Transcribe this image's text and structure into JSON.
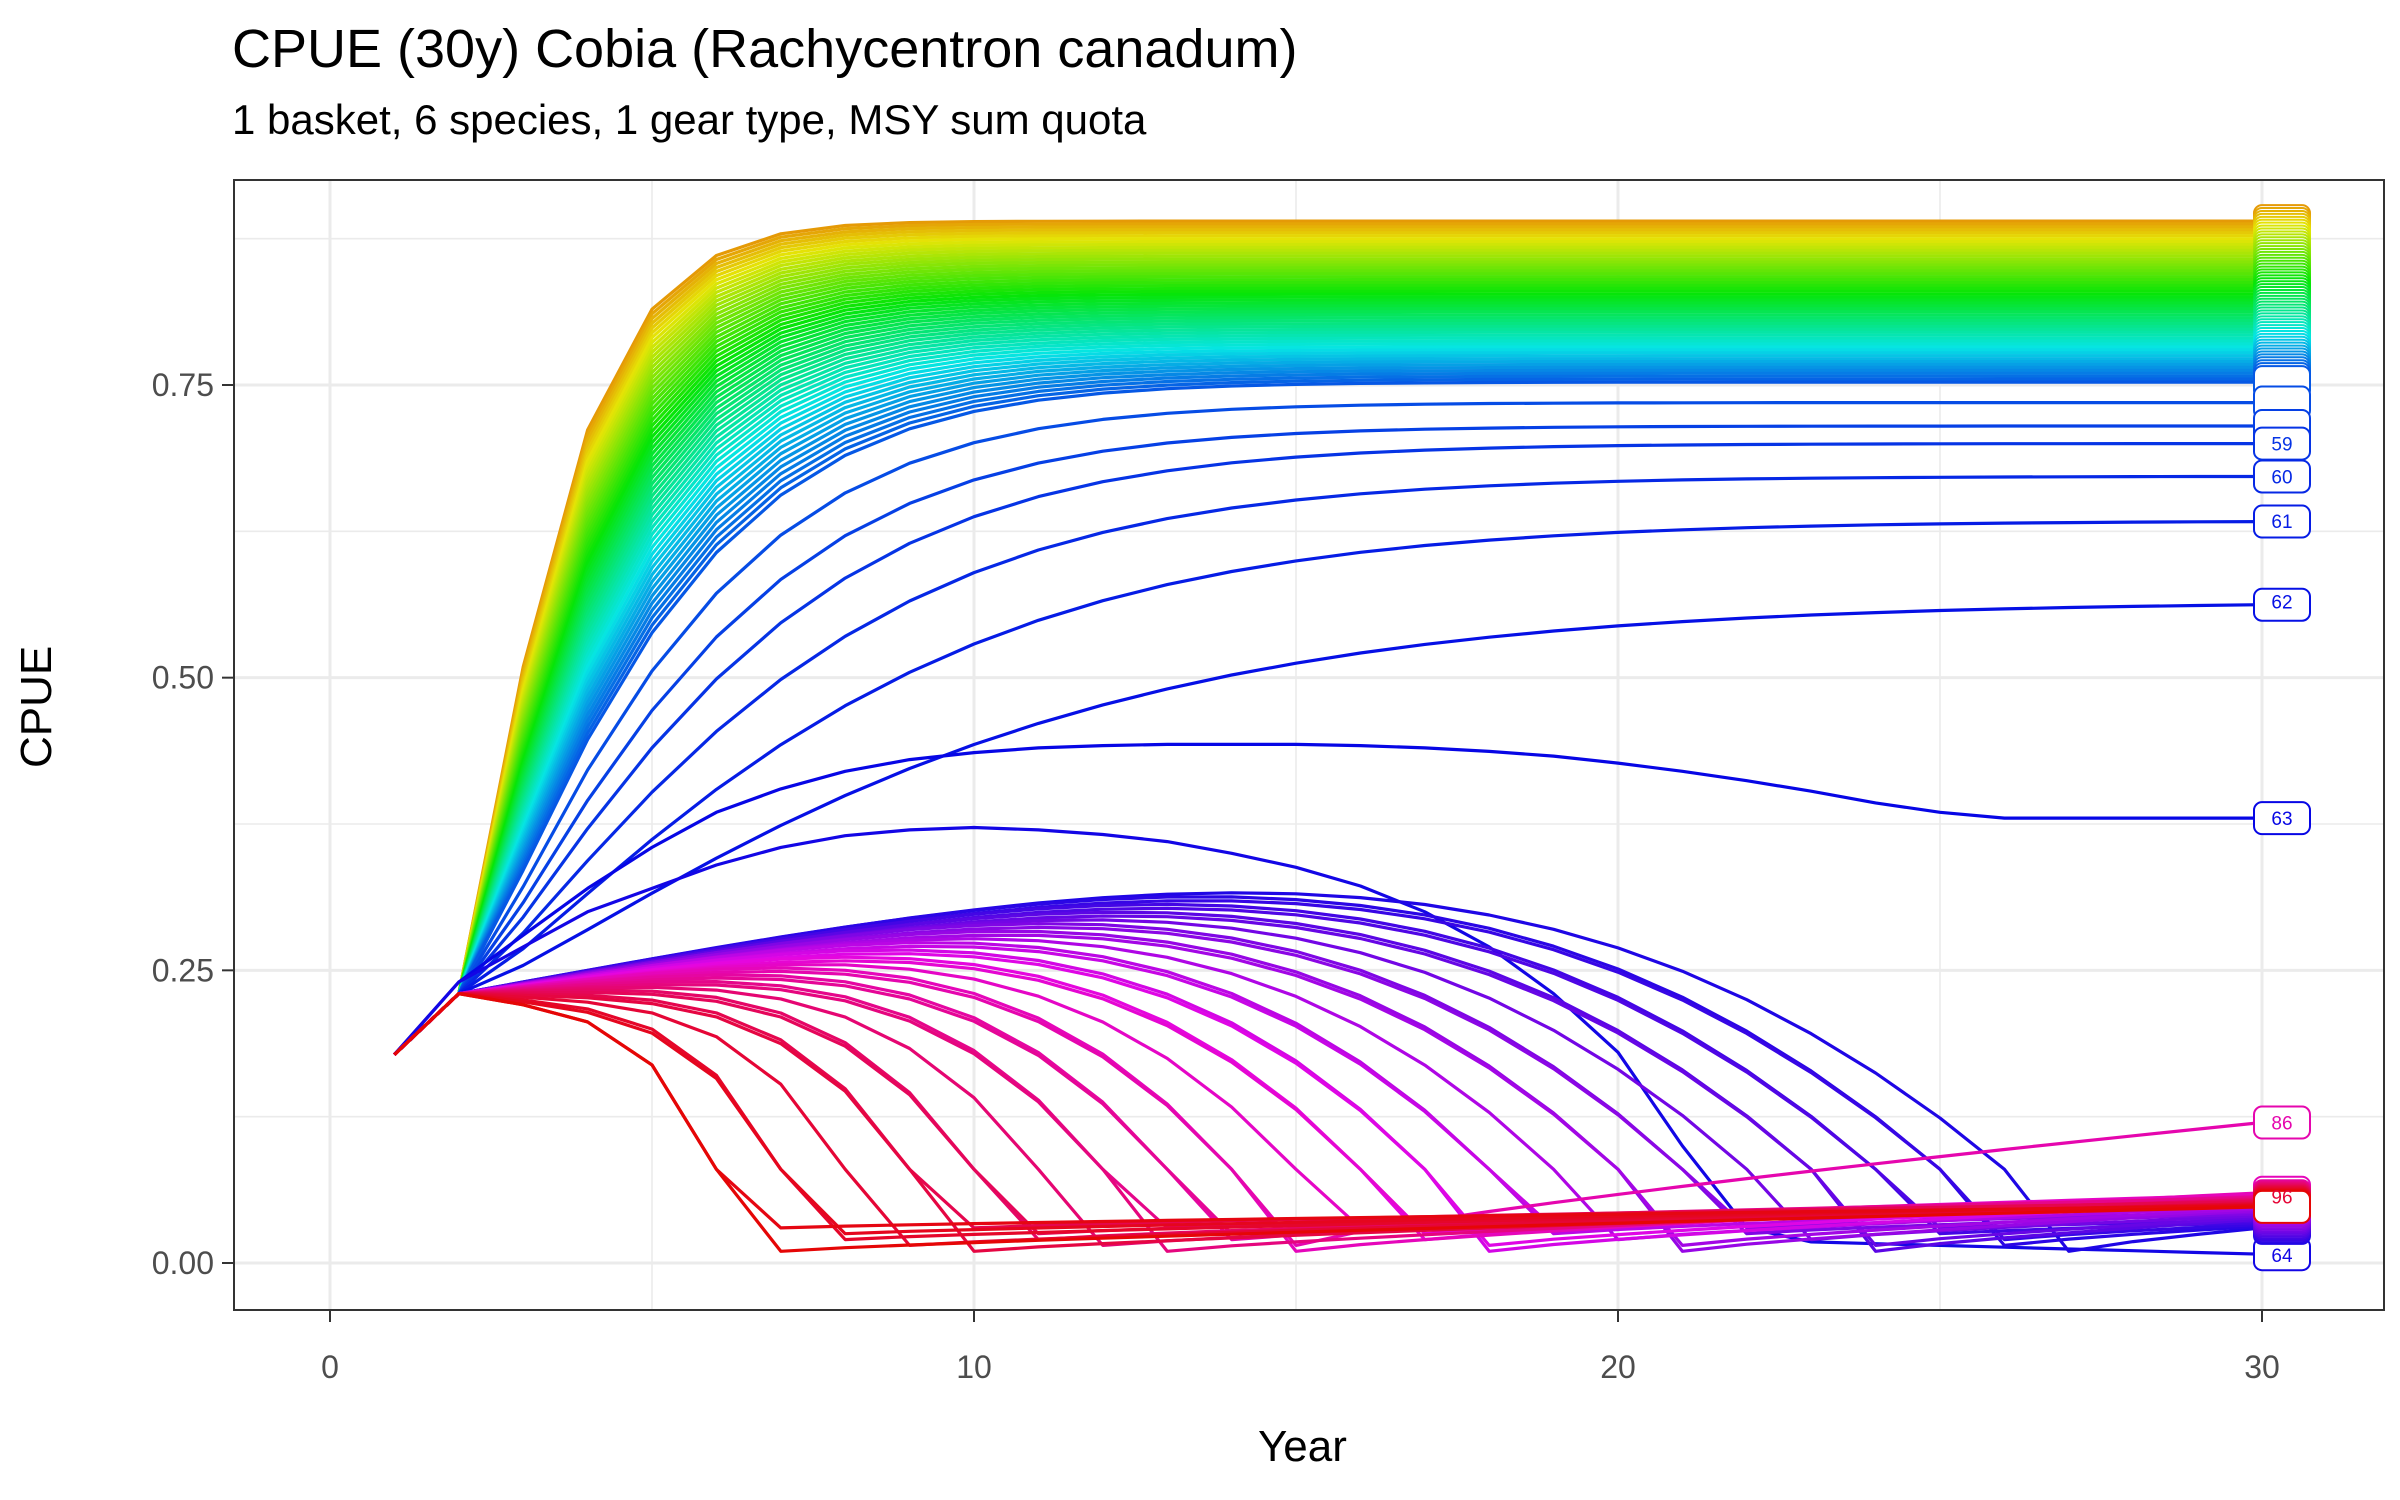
{
  "chart_data": {
    "type": "line",
    "title": "CPUE (30y) Cobia (Rachycentron canadum)",
    "subtitle": "1 basket, 6 species, 1 gear type, MSY sum quota",
    "xlabel": "Year",
    "ylabel": "CPUE",
    "xlim": [
      -10,
      32
    ],
    "ylim": [
      -0.045,
      0.93
    ],
    "x_ticks": [
      "0",
      "10",
      "20",
      "30"
    ],
    "y_ticks": [
      "0.00",
      "0.25",
      "0.50",
      "0.75"
    ],
    "grid": true,
    "legend": "none",
    "start": {
      "year": 1,
      "cpue": 0.178
    },
    "num_series": 100,
    "scenario_groups": [
      {
        "ids": "1-56",
        "behavior": "recovery to plateau",
        "final_cpue_range": [
          0.75,
          0.89
        ]
      },
      {
        "ids": "57-62",
        "behavior": "slow recovery",
        "final_cpue_range": [
          0.56,
          0.72
        ]
      },
      {
        "ids": "63",
        "behavior": "rise then decline",
        "final_cpue": 0.38
      },
      {
        "ids": "64",
        "behavior": "collapse at year 27 then near-zero",
        "final_cpue": 0.01
      },
      {
        "ids": "65-100",
        "behavior": "collapse then low recovery",
        "final_cpue_range": [
          0.03,
          0.12
        ]
      }
    ],
    "visible_end_labels": [
      {
        "id": "59",
        "value": 0.7
      },
      {
        "id": "60",
        "value": 0.672
      },
      {
        "id": "61",
        "value": 0.634
      },
      {
        "id": "62",
        "value": 0.565
      },
      {
        "id": "63",
        "value": 0.38
      },
      {
        "id": "64",
        "value": 0.007
      },
      {
        "id": "86",
        "value": 0.12
      },
      {
        "id": "96",
        "value": 0.057
      }
    ],
    "colors": {
      "orange": "#e58700",
      "green": "#00ba38",
      "teal": "#00bfc4",
      "blue": "#00a9ff",
      "purple": "#8f7cff",
      "magenta": "#ff61c3",
      "red": "#f8766d"
    }
  }
}
